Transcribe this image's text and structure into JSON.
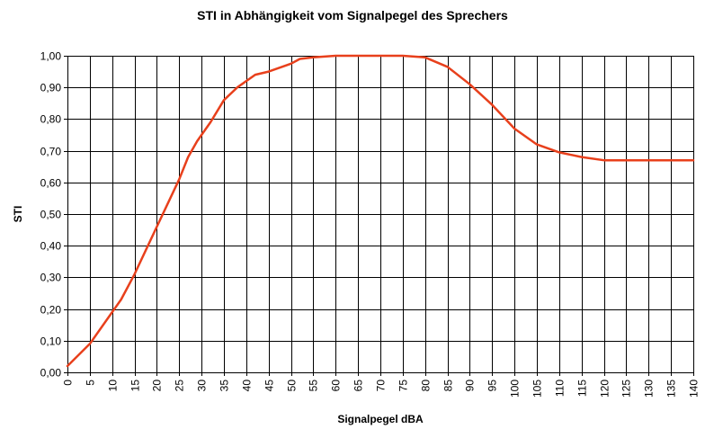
{
  "chart_data": {
    "type": "line",
    "title": "STI in Abhängigkeit vom Signalpegel des Sprechers",
    "xlabel": "Signalpegel dBA",
    "ylabel": "STI",
    "xlim": [
      0,
      140
    ],
    "ylim": [
      0,
      1
    ],
    "x_ticks": [
      "0",
      "5",
      "10",
      "15",
      "20",
      "25",
      "30",
      "35",
      "40",
      "45",
      "50",
      "55",
      "60",
      "65",
      "70",
      "75",
      "80",
      "85",
      "90",
      "95",
      "100",
      "105",
      "110",
      "115",
      "120",
      "125",
      "130",
      "135",
      "140"
    ],
    "y_ticks": [
      "0,00",
      "0,10",
      "0,20",
      "0,30",
      "0,40",
      "0,50",
      "0,60",
      "0,70",
      "0,80",
      "0,90",
      "1,00"
    ],
    "grid": true,
    "line_color": "#e8401c",
    "series": [
      {
        "x": [
          0,
          5,
          10,
          12,
          15,
          20,
          25,
          27,
          29,
          32,
          35,
          38,
          42,
          45,
          50,
          52,
          55,
          60,
          65,
          70,
          75,
          80,
          85,
          90,
          95,
          100,
          105,
          110,
          115,
          120,
          125,
          130,
          135,
          140
        ],
        "y": [
          0.02,
          0.09,
          0.19,
          0.23,
          0.31,
          0.46,
          0.61,
          0.68,
          0.73,
          0.79,
          0.86,
          0.9,
          0.94,
          0.95,
          0.975,
          0.99,
          0.995,
          1.0,
          1.0,
          1.0,
          1.0,
          0.995,
          0.965,
          0.91,
          0.845,
          0.77,
          0.72,
          0.695,
          0.68,
          0.67,
          0.67,
          0.67,
          0.67,
          0.67
        ]
      }
    ]
  }
}
